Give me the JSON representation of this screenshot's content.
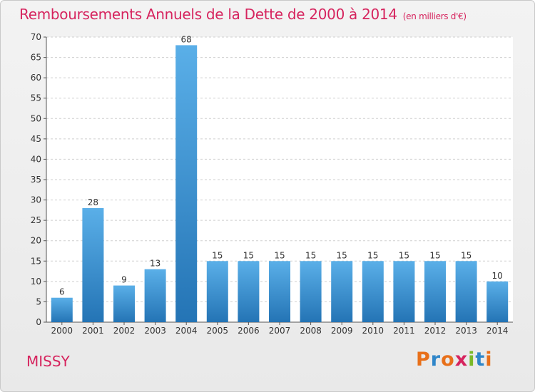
{
  "header": {
    "title": "Remboursements Annuels de la Dette de 2000 à 2014",
    "unit": "(en milliers d'€)"
  },
  "footer": {
    "commune": "MISSY",
    "logo_letters": [
      "P",
      "r",
      "o",
      "x",
      "i",
      "t",
      "i"
    ],
    "logo_colors": [
      "#e8701a",
      "#2f86c9",
      "#e8701a",
      "#d6245e",
      "#7ab928",
      "#2f86c9",
      "#e8701a"
    ]
  },
  "colors": {
    "bar_top": "#5aafe8",
    "bar_bottom": "#2474b5",
    "title": "#d6245e",
    "grid": "#cfcfcf"
  },
  "chart_data": {
    "type": "bar",
    "title": "Remboursements Annuels de la Dette de 2000 à 2014",
    "xlabel": "",
    "ylabel": "",
    "ylim": [
      0,
      70
    ],
    "yticks": [
      0,
      5,
      10,
      15,
      20,
      25,
      30,
      35,
      40,
      45,
      50,
      55,
      60,
      65,
      70
    ],
    "grid": true,
    "categories": [
      "2000",
      "2001",
      "2002",
      "2003",
      "2004",
      "2005",
      "2006",
      "2007",
      "2008",
      "2009",
      "2010",
      "2011",
      "2012",
      "2013",
      "2014"
    ],
    "values": [
      6,
      28,
      9,
      13,
      68,
      15,
      15,
      15,
      15,
      15,
      15,
      15,
      15,
      15,
      10
    ]
  }
}
